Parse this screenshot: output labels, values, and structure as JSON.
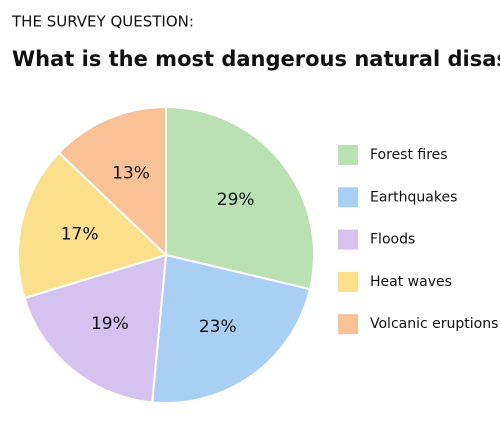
{
  "chart_data": {
    "type": "pie",
    "subtitle": "THE SURVEY QUESTION:",
    "title": "What is the most dangerous natural disaster?",
    "categories": [
      "Forest fires",
      "Earthquakes",
      "Floods",
      "Heat waves",
      "Volcanic eruptions"
    ],
    "values": [
      29,
      23,
      19,
      17,
      13
    ],
    "value_labels": [
      "29%",
      "23%",
      "19%",
      "17%",
      "13%"
    ],
    "colors": [
      "#b9e1b1",
      "#aacff5",
      "#d6c2ef",
      "#fbe08b",
      "#f9c196"
    ],
    "legend": "right"
  }
}
